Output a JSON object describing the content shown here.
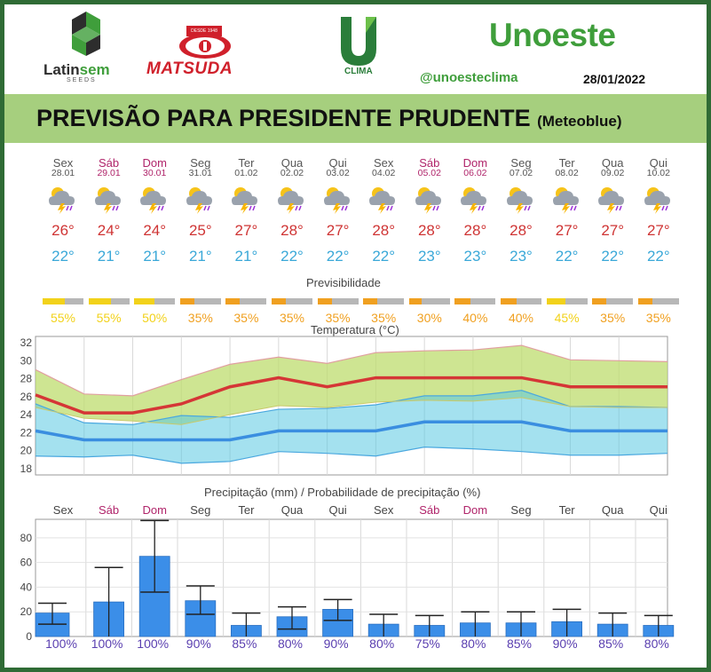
{
  "header": {
    "logo1_a": "Latin",
    "logo1_b": "sem",
    "logo1_sub": "SEEDS",
    "logo2_tag": "DESDE 1948",
    "logo2": "MATSUDA",
    "logo3": "CLIMA",
    "brand": "Unoeste",
    "handle": "@unoesteclima",
    "date": "28/01/2022",
    "title": "PREVISÃO PARA PRESIDENTE PRUDENTE",
    "title_source": "(Meteoblue)"
  },
  "colors": {
    "weekend": "#b0246a",
    "max": "#cf3434",
    "min": "#3aa8d8",
    "bar": "#3b8ee8",
    "previsibility_high": "#f2d21a",
    "previsibility_mid": "#f0a020",
    "probability": "#5a3fb0"
  },
  "chart_data": [
    {
      "type": "table",
      "title": "",
      "days": [
        "Sex",
        "Sáb",
        "Dom",
        "Seg",
        "Ter",
        "Qua",
        "Qui",
        "Sex",
        "Sáb",
        "Dom",
        "Seg",
        "Ter",
        "Qua",
        "Qui"
      ],
      "dates": [
        "28.01",
        "29.01",
        "30.01",
        "31.01",
        "01.02",
        "02.02",
        "03.02",
        "04.02",
        "05.02",
        "06.02",
        "07.02",
        "08.02",
        "09.02",
        "10.02"
      ],
      "weekend": [
        false,
        true,
        true,
        false,
        false,
        false,
        false,
        false,
        true,
        true,
        false,
        false,
        false,
        false
      ],
      "weather_icon": "storm-sun-icon",
      "tmax": [
        26,
        24,
        24,
        25,
        27,
        28,
        27,
        28,
        28,
        28,
        28,
        27,
        27,
        27
      ],
      "tmin": [
        22,
        21,
        21,
        21,
        21,
        22,
        22,
        22,
        23,
        23,
        23,
        22,
        22,
        22
      ],
      "deg": "°"
    },
    {
      "type": "bar",
      "title": "Previsibilidade",
      "values": [
        55,
        55,
        50,
        35,
        35,
        35,
        35,
        35,
        30,
        40,
        40,
        45,
        35,
        35
      ],
      "unit": "%"
    },
    {
      "type": "line",
      "title": "Temperatura (°C)",
      "y_ticks": [
        18,
        20,
        22,
        24,
        26,
        28,
        30,
        32
      ],
      "ylim": [
        17.5,
        32.5
      ],
      "series": [
        {
          "values": [
            26.2,
            24.2,
            24.2,
            25.2,
            27.1,
            28.1,
            27.1,
            28.1,
            28.1,
            28.1,
            28.1,
            27.1,
            27.1,
            27.1
          ]
        },
        {
          "values": [
            29.0,
            26.3,
            26.1,
            27.9,
            29.6,
            30.4,
            29.7,
            30.9,
            31.1,
            31.2,
            31.7,
            30.1,
            30.0,
            29.9
          ]
        },
        {
          "values": [
            24.8,
            23.6,
            23.3,
            22.9,
            24.0,
            25.0,
            24.8,
            25.4,
            25.6,
            25.5,
            25.9,
            24.9,
            24.8,
            24.8
          ]
        },
        {
          "values": [
            22.2,
            21.2,
            21.2,
            21.2,
            21.2,
            22.2,
            22.2,
            22.2,
            23.2,
            23.2,
            23.2,
            22.2,
            22.2,
            22.2
          ]
        },
        {
          "values": [
            25.2,
            23.1,
            22.9,
            23.9,
            23.7,
            24.6,
            24.7,
            25.1,
            26.1,
            26.1,
            26.7,
            24.9,
            24.9,
            24.8
          ]
        },
        {
          "values": [
            19.4,
            19.3,
            19.5,
            18.6,
            18.8,
            19.9,
            19.7,
            19.4,
            20.4,
            20.2,
            19.9,
            19.5,
            19.5,
            19.7
          ]
        }
      ]
    },
    {
      "type": "bar",
      "title": "Precipitação (mm) / Probabilidade de precipitação (%)",
      "categories": [
        "Sex",
        "Sáb",
        "Dom",
        "Seg",
        "Ter",
        "Qua",
        "Qui",
        "Sex",
        "Sáb",
        "Dom",
        "Seg",
        "Ter",
        "Qua",
        "Qui"
      ],
      "y_ticks": [
        0,
        20,
        40,
        60,
        80
      ],
      "ylim": [
        0,
        95
      ],
      "values": [
        19,
        28,
        65,
        29,
        9,
        16,
        22,
        10,
        9,
        11,
        11,
        12,
        10,
        9
      ],
      "err_low": [
        10,
        0,
        36,
        18,
        0,
        6,
        13,
        0,
        0,
        0,
        0,
        0,
        0,
        0
      ],
      "err_high": [
        27,
        56,
        94,
        41,
        19,
        24,
        30,
        18,
        17,
        20,
        20,
        22,
        19,
        17
      ],
      "probability": [
        100,
        100,
        100,
        90,
        85,
        80,
        90,
        80,
        75,
        80,
        85,
        90,
        85,
        80
      ],
      "unit": "%"
    }
  ]
}
